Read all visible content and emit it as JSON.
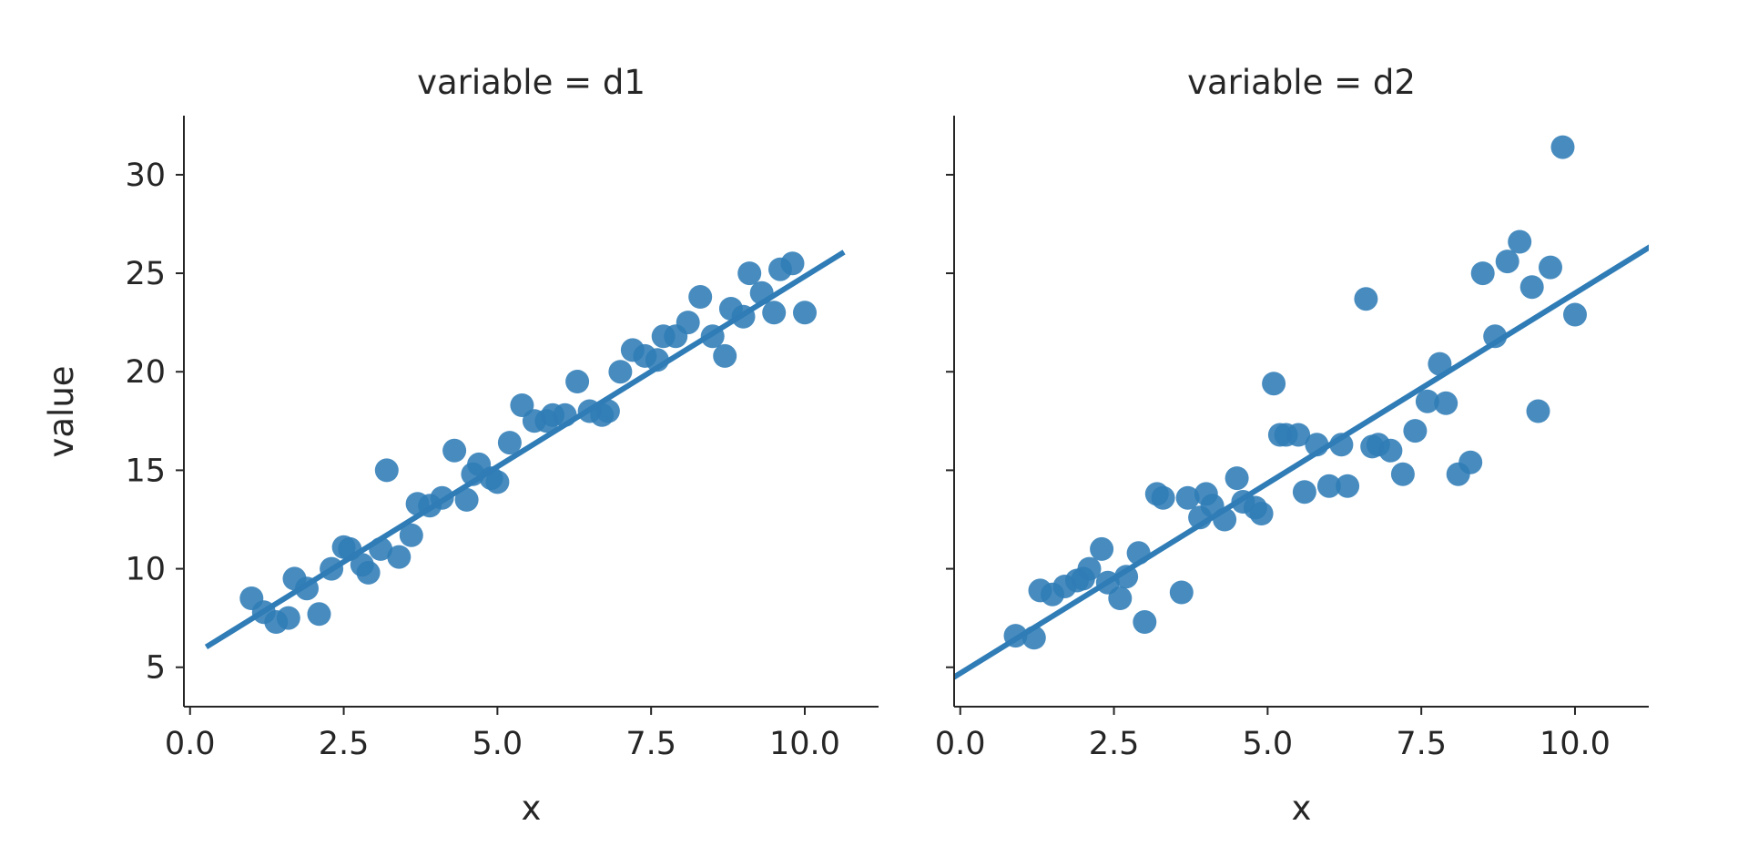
{
  "chart_data": [
    {
      "type": "scatter",
      "title": "variable = d1",
      "xlabel": "x",
      "ylabel": "value",
      "xlim": [
        -0.1,
        11.2
      ],
      "ylim": [
        3,
        33
      ],
      "xticks": [
        0.0,
        2.5,
        5.0,
        7.5,
        10.0
      ],
      "xtick_labels": [
        "0.0",
        "2.5",
        "5.0",
        "7.5",
        "10.0"
      ],
      "yticks": [
        5,
        10,
        15,
        20,
        25,
        30
      ],
      "ytick_labels": [
        "5",
        "10",
        "15",
        "20",
        "25",
        "30"
      ],
      "grid": false,
      "color": "#2f7cb6",
      "series": [
        {
          "x": [
            1.0,
            1.2,
            1.4,
            1.6,
            1.7,
            1.9,
            2.1,
            2.3,
            2.5,
            2.6,
            2.8,
            2.9,
            3.1,
            3.2,
            3.4,
            3.6,
            3.7,
            3.9,
            4.1,
            4.3,
            4.5,
            4.6,
            4.7,
            4.9,
            5.0,
            5.2,
            5.4,
            5.6,
            5.8,
            5.9,
            6.1,
            6.3,
            6.5,
            6.7,
            6.8,
            7.0,
            7.2,
            7.4,
            7.6,
            7.7,
            7.9,
            8.1,
            8.3,
            8.5,
            8.7,
            8.8,
            9.0,
            9.1,
            9.3,
            9.5,
            9.6,
            9.8,
            10.0
          ],
          "y": [
            8.5,
            7.8,
            7.3,
            7.5,
            9.5,
            9.0,
            7.7,
            10.0,
            11.1,
            11.0,
            10.2,
            9.8,
            11.0,
            15.0,
            10.6,
            11.7,
            13.3,
            13.2,
            13.6,
            16.0,
            13.5,
            14.8,
            15.3,
            14.6,
            14.4,
            16.4,
            18.3,
            17.5,
            17.5,
            17.8,
            17.8,
            19.5,
            18.0,
            17.8,
            18.0,
            20.0,
            21.1,
            20.8,
            20.6,
            21.8,
            21.8,
            22.5,
            23.8,
            21.8,
            20.8,
            23.2,
            22.8,
            25.0,
            24.0,
            23.0,
            25.2,
            25.5,
            23.0
          ]
        }
      ],
      "regression": {
        "x": [
          0.3,
          10.6
        ],
        "y": [
          6.1,
          26.0
        ]
      }
    },
    {
      "type": "scatter",
      "title": "variable = d2",
      "xlabel": "x",
      "ylabel": "",
      "xlim": [
        -0.1,
        11.2
      ],
      "ylim": [
        3,
        33
      ],
      "xticks": [
        0.0,
        2.5,
        5.0,
        7.5,
        10.0
      ],
      "xtick_labels": [
        "0.0",
        "2.5",
        "5.0",
        "7.5",
        "10.0"
      ],
      "yticks": [
        5,
        10,
        15,
        20,
        25,
        30
      ],
      "grid": false,
      "color": "#2f7cb6",
      "series": [
        {
          "x": [
            0.9,
            1.2,
            1.3,
            1.5,
            1.7,
            1.9,
            2.0,
            2.1,
            2.3,
            2.4,
            2.6,
            2.7,
            2.9,
            3.0,
            3.2,
            3.3,
            3.6,
            3.7,
            3.9,
            4.0,
            4.1,
            4.3,
            4.5,
            4.6,
            4.8,
            4.9,
            5.1,
            5.2,
            5.3,
            5.5,
            5.6,
            5.8,
            6.0,
            6.2,
            6.3,
            6.6,
            6.7,
            6.8,
            7.0,
            7.2,
            7.4,
            7.6,
            7.8,
            7.9,
            8.1,
            8.3,
            8.5,
            8.7,
            8.9,
            9.1,
            9.3,
            9.4,
            9.6,
            9.8,
            10.0
          ],
          "y": [
            6.6,
            6.5,
            8.9,
            8.7,
            9.1,
            9.4,
            9.5,
            10.0,
            11.0,
            9.3,
            8.5,
            9.6,
            10.8,
            7.3,
            13.8,
            13.6,
            8.8,
            13.6,
            12.6,
            13.8,
            13.2,
            12.5,
            14.6,
            13.4,
            13.1,
            12.8,
            19.4,
            16.8,
            16.8,
            16.8,
            13.9,
            16.3,
            14.2,
            16.3,
            14.2,
            23.7,
            16.2,
            16.3,
            16.0,
            14.8,
            17.0,
            18.5,
            20.4,
            18.4,
            14.8,
            15.4,
            25.0,
            21.8,
            25.6,
            26.6,
            24.3,
            18.0,
            25.3,
            31.4,
            22.9
          ]
        }
      ],
      "regression": {
        "x": [
          -0.1,
          11.2
        ],
        "y": [
          4.5,
          26.3
        ]
      }
    }
  ]
}
